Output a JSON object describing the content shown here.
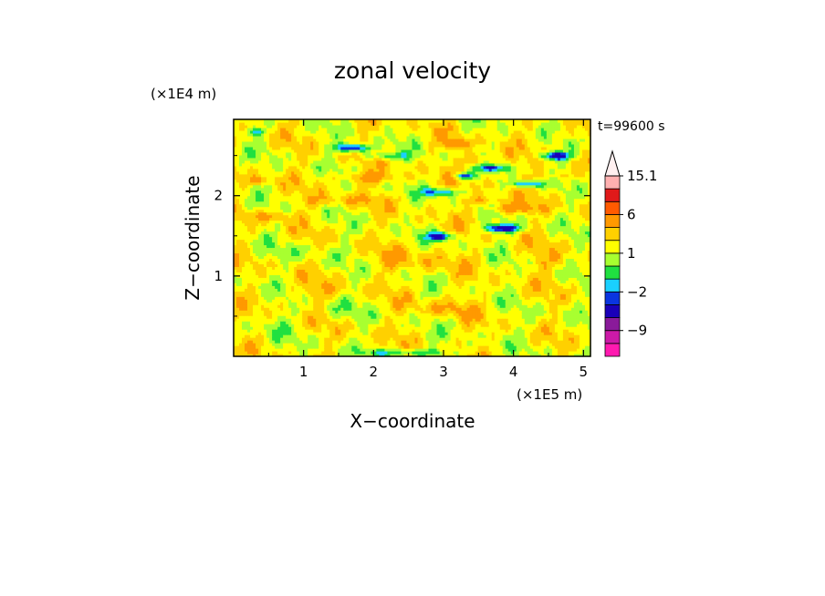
{
  "chart_data": {
    "type": "heatmap",
    "title": "zonal velocity",
    "xlabel": "X−coordinate",
    "ylabel": "Z−coordinate",
    "x_unit": "(×1E5 m)",
    "y_unit": "(×1E4 m)",
    "time_label": "t=99600 s",
    "xlim": [
      0,
      5.1
    ],
    "ylim": [
      0,
      2.95
    ],
    "x_ticks": [
      1,
      2,
      3,
      4,
      5
    ],
    "y_ticks": [
      1,
      2
    ],
    "x_tick_labels": [
      "1",
      "2",
      "3",
      "4",
      "5"
    ],
    "y_tick_labels": [
      "1",
      "2"
    ],
    "colorbar": {
      "levels": [
        -15,
        -12,
        -9,
        -6,
        -3,
        -2,
        -1,
        0,
        1,
        2,
        3,
        6,
        9,
        12,
        15.1
      ],
      "colors": [
        "#ff1ab0",
        "#cc1aa8",
        "#8a1a9a",
        "#1a00b8",
        "#0a35e0",
        "#1ad0ff",
        "#20e040",
        "#a8ff30",
        "#ffff00",
        "#ffd000",
        "#ff9900",
        "#ff5a00",
        "#e01a1a",
        "#ffb0b0",
        "#fff0f0"
      ],
      "labels": [
        {
          "value": 15.1,
          "text": "15.1"
        },
        {
          "value": 6,
          "text": "6"
        },
        {
          "value": 1,
          "text": "1"
        },
        {
          "value": -2,
          "text": "−2"
        },
        {
          "value": -9,
          "text": "−9"
        }
      ]
    },
    "features": [
      {
        "x": 1.9,
        "z": 2.23,
        "value": 3.5,
        "sx": 0.4,
        "sz": 0.07
      },
      {
        "x": 0.35,
        "z": 2.2,
        "value": 3,
        "sx": 0.2,
        "sz": 0.05
      },
      {
        "x": 0.5,
        "z": 1.75,
        "value": 3,
        "sx": 0.35,
        "sz": 0.06
      },
      {
        "x": 1.5,
        "z": 1.95,
        "value": 2.5,
        "sx": 0.5,
        "sz": 0.06
      },
      {
        "x": 3.5,
        "z": 2.45,
        "value": 3,
        "sx": 0.25,
        "sz": 0.08
      },
      {
        "x": 3.2,
        "z": 2.65,
        "value": 4,
        "sx": 0.15,
        "sz": 0.06
      },
      {
        "x": 4.0,
        "z": 1.85,
        "value": 4,
        "sx": 0.35,
        "sz": 0.06
      },
      {
        "x": 3.6,
        "z": 1.95,
        "value": 3,
        "sx": 0.3,
        "sz": 0.05
      },
      {
        "x": 4.6,
        "z": 2.25,
        "value": 2.5,
        "sx": 0.3,
        "sz": 0.06
      },
      {
        "x": 4.8,
        "z": 2.75,
        "value": 2,
        "sx": 0.2,
        "sz": 0.06
      },
      {
        "x": 1.7,
        "z": 2.6,
        "value": -4,
        "sx": 0.25,
        "sz": 0.05
      },
      {
        "x": 2.2,
        "z": 2.5,
        "value": -1.5,
        "sx": 0.3,
        "sz": 0.05
      },
      {
        "x": 3.85,
        "z": 1.6,
        "value": -5,
        "sx": 0.25,
        "sz": 0.05
      },
      {
        "x": 2.95,
        "z": 1.5,
        "value": -4,
        "sx": 0.18,
        "sz": 0.05
      },
      {
        "x": 4.2,
        "z": 2.15,
        "value": -3.5,
        "sx": 0.2,
        "sz": 0.04
      },
      {
        "x": 4.6,
        "z": 2.5,
        "value": -5,
        "sx": 0.2,
        "sz": 0.05
      },
      {
        "x": 3.3,
        "z": 2.25,
        "value": -4,
        "sx": 0.12,
        "sz": 0.04
      },
      {
        "x": 2.95,
        "z": 2.05,
        "value": -2.5,
        "sx": 0.25,
        "sz": 0.05
      },
      {
        "x": 3.7,
        "z": 2.35,
        "value": -3,
        "sx": 0.2,
        "sz": 0.04
      },
      {
        "x": 0.3,
        "z": 2.8,
        "value": -1.5,
        "sx": 0.15,
        "sz": 0.05
      },
      {
        "x": 2.5,
        "z": 0.05,
        "value": -1.5,
        "sx": 0.6,
        "sz": 0.05
      },
      {
        "x": 1.0,
        "z": 1.3,
        "value": 0.5,
        "sx": 0.5,
        "sz": 0.12
      },
      {
        "x": 0.6,
        "z": 0.4,
        "value": 0.5,
        "sx": 0.3,
        "sz": 0.15
      },
      {
        "x": 4.3,
        "z": 0.45,
        "value": 0.6,
        "sx": 0.25,
        "sz": 0.15
      },
      {
        "x": 1.5,
        "z": 0.6,
        "value": 0.4,
        "sx": 0.3,
        "sz": 0.15
      },
      {
        "x": 2.6,
        "z": 1.2,
        "value": 2.2,
        "sx": 0.6,
        "sz": 0.15
      },
      {
        "x": 3.0,
        "z": 0.6,
        "value": 2.5,
        "sx": 0.4,
        "sz": 0.1
      },
      {
        "x": 1.2,
        "z": 0.8,
        "value": 2.1,
        "sx": 0.4,
        "sz": 0.12
      },
      {
        "x": 4.5,
        "z": 1.2,
        "value": 2.2,
        "sx": 0.3,
        "sz": 0.12
      }
    ]
  }
}
